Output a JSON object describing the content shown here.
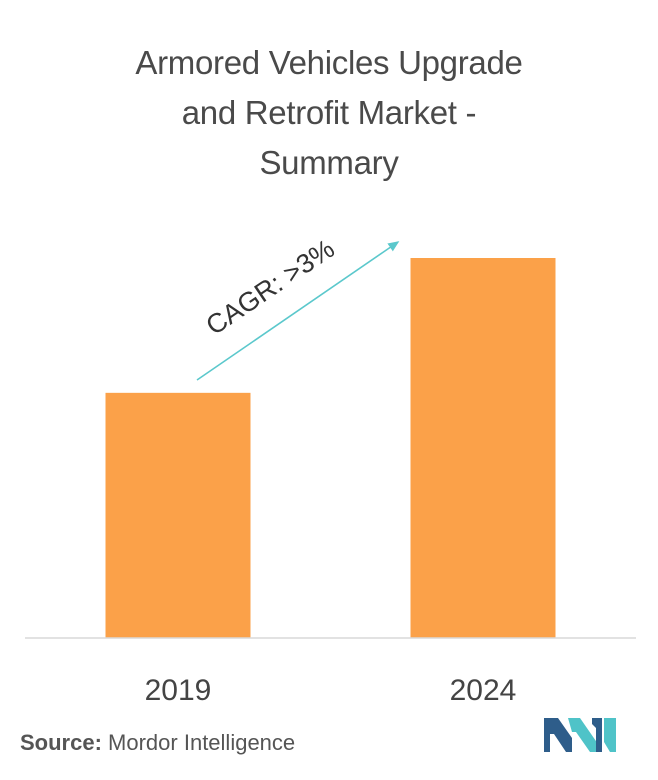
{
  "chart_data": {
    "type": "bar",
    "title": "Armored Vehicles Upgrade and Retrofit Market - Summary",
    "categories": [
      "2019",
      "2024"
    ],
    "values": [
      100,
      155
    ],
    "bar_color": "#FBA149",
    "axis_color": "#d9d9d9",
    "annotation": {
      "text": "CAGR: >3%",
      "color": "#5bc8cc"
    },
    "grid": false,
    "legend": "none"
  },
  "source": {
    "label": "Source:",
    "text": "Mordor Intelligence"
  },
  "logo": {
    "icon": "mordor-intelligence-logo",
    "colors": [
      "#2e5d8a",
      "#4fc3c8"
    ]
  }
}
